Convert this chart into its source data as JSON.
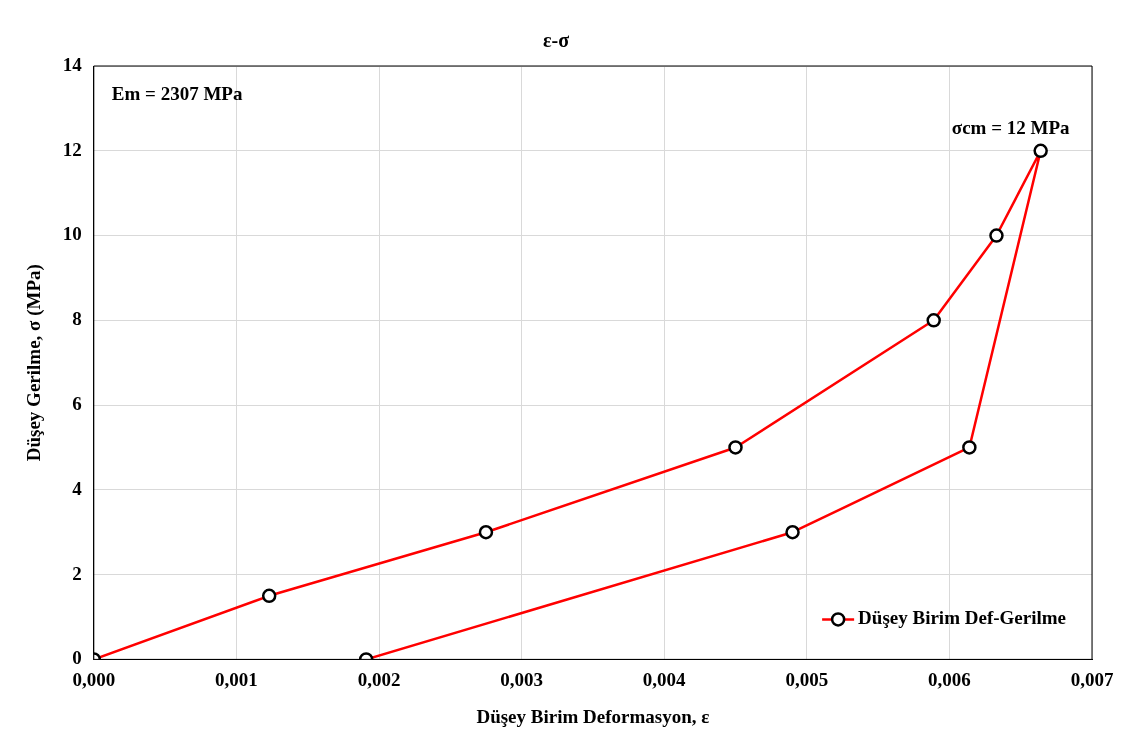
{
  "chart_data": {
    "type": "line",
    "title": "ε-σ",
    "xlabel": "Düşey Birim Deformasyon, ε",
    "ylabel": "Düşey Gerilme, σ (MPa)",
    "x": [
      0,
      0.00123,
      0.00275,
      0.0045,
      0.00589,
      0.00633,
      0.00664,
      0.00614,
      0.0049,
      0.00191
    ],
    "series": [
      {
        "name": "Düşey Birim Def-Gerilme",
        "color": "#ff0000",
        "values": [
          0,
          1.5,
          3,
          5,
          8,
          10,
          12,
          5,
          3,
          0
        ]
      }
    ],
    "xlim": [
      0,
      0.007
    ],
    "xticks": [
      {
        "value": 0,
        "label": "0,000"
      },
      {
        "value": 0.001,
        "label": "0,001"
      },
      {
        "value": 0.002,
        "label": "0,002"
      },
      {
        "value": 0.003,
        "label": "0,003"
      },
      {
        "value": 0.004,
        "label": "0,004"
      },
      {
        "value": 0.005,
        "label": "0,005"
      },
      {
        "value": 0.006,
        "label": "0,006"
      },
      {
        "value": 0.007,
        "label": "0,007"
      }
    ],
    "ylim": [
      0,
      14
    ],
    "yticks": [
      0,
      2,
      4,
      6,
      8,
      10,
      12,
      14
    ],
    "annotations": [
      "Em = 2307 MPa",
      {
        "text": "σcm = 12 MPa",
        "x": 0.00664,
        "y": 12
      }
    ],
    "grid": true,
    "legend": "bottom right",
    "marker": "circle",
    "line_style": "solid"
  }
}
